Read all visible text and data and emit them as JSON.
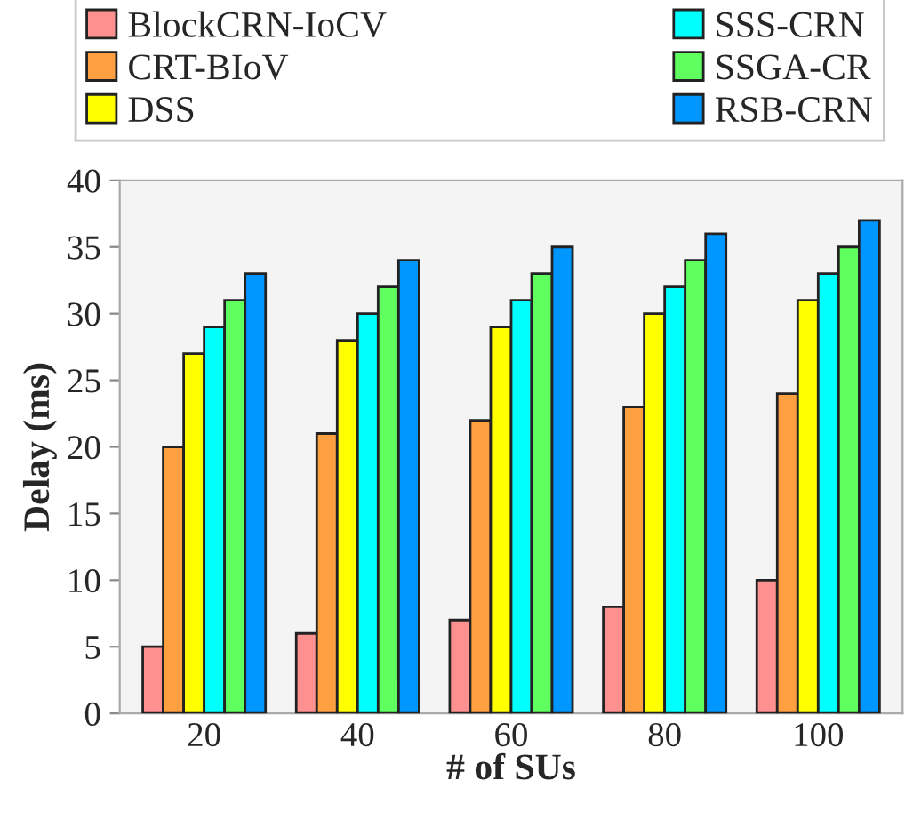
{
  "chart_data": {
    "type": "bar",
    "xlabel": "# of SUs",
    "ylabel": "Delay (ms)",
    "categories": [
      "20",
      "40",
      "60",
      "80",
      "100"
    ],
    "series": [
      {
        "name": "BlockCRN-IoCV",
        "color": "#ff9090",
        "values": [
          5,
          6,
          7,
          8,
          10
        ]
      },
      {
        "name": "CRT-BIoV",
        "color": "#ffa040",
        "values": [
          20,
          21,
          22,
          23,
          24
        ]
      },
      {
        "name": "DSS",
        "color": "#ffff00",
        "values": [
          27,
          28,
          29,
          30,
          31
        ]
      },
      {
        "name": "SSS-CRN",
        "color": "#00ffff",
        "values": [
          29,
          30,
          31,
          32,
          33
        ]
      },
      {
        "name": "SSGA-CR",
        "color": "#60ff60",
        "values": [
          31,
          32,
          33,
          34,
          35
        ]
      },
      {
        "name": "RSB-CRN",
        "color": "#0096ff",
        "values": [
          33,
          34,
          35,
          36,
          37
        ]
      }
    ],
    "ylim": [
      0,
      40
    ],
    "yticks": [
      0,
      5,
      10,
      15,
      20,
      25,
      30,
      35,
      40
    ],
    "grid": false,
    "legend": "top"
  }
}
